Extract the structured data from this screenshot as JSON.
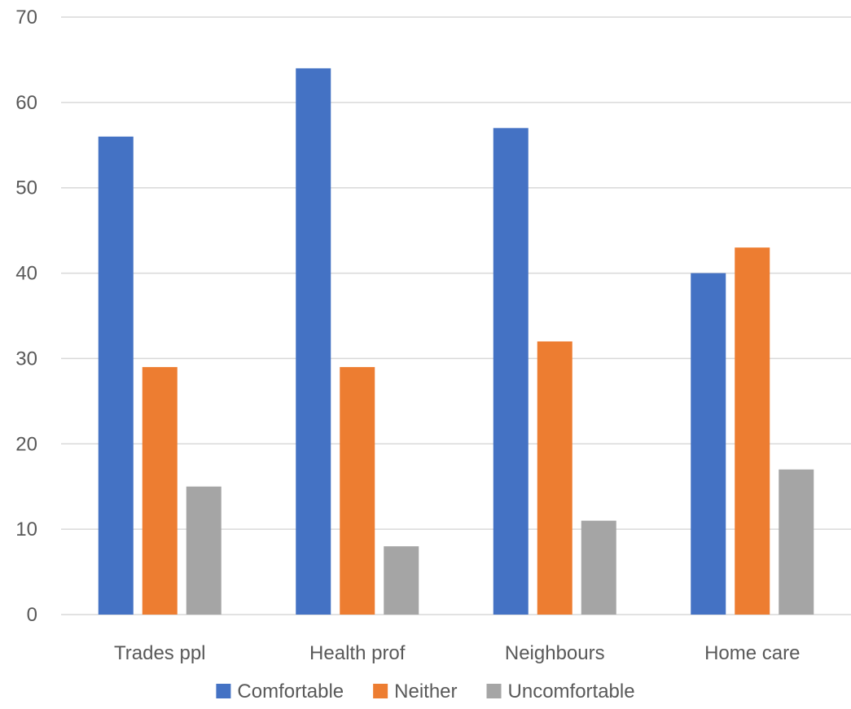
{
  "chart_data": {
    "type": "bar",
    "categories": [
      "Trades ppl",
      "Health prof",
      "Neighbours",
      "Home care"
    ],
    "series": [
      {
        "name": "Comfortable",
        "color": "#4472c4",
        "values": [
          56,
          64,
          57,
          40
        ]
      },
      {
        "name": "Neither",
        "color": "#ed7d31",
        "values": [
          29,
          29,
          32,
          43
        ]
      },
      {
        "name": "Uncomfortable",
        "color": "#a5a5a5",
        "values": [
          15,
          8,
          11,
          17
        ]
      }
    ],
    "ylim": [
      0,
      70
    ],
    "yticks": [
      0,
      10,
      20,
      30,
      40,
      50,
      60,
      70
    ],
    "grid": true,
    "legend_position": "bottom"
  }
}
